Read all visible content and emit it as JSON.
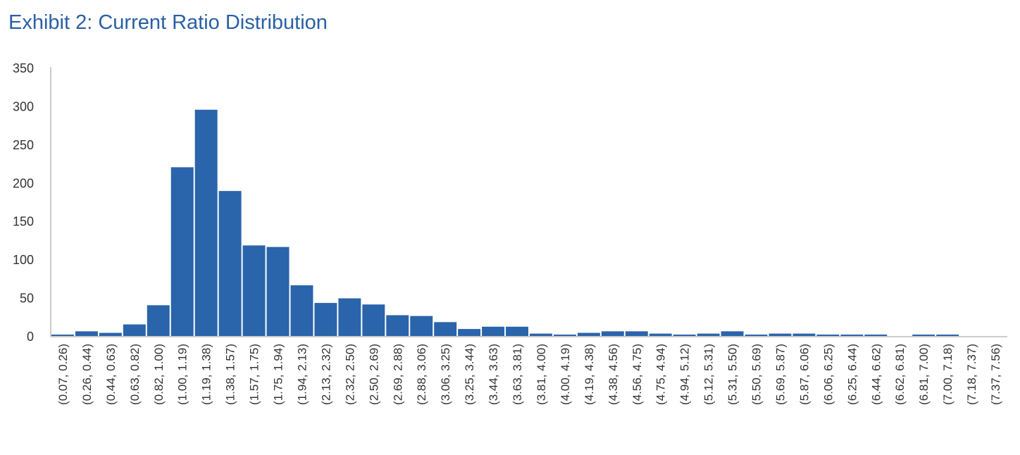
{
  "colors": {
    "bar": "#2a64aa",
    "axis": "#cccccc",
    "title": "#2a5fa5",
    "text": "#333333"
  },
  "chart_data": {
    "type": "bar",
    "title": "Exhibit 2: Current Ratio Distribution",
    "xlabel": "",
    "ylabel": "",
    "ylim": [
      0,
      350
    ],
    "yticks": [
      0,
      50,
      100,
      150,
      200,
      250,
      300,
      350
    ],
    "grid": false,
    "legend": "none",
    "categories": [
      "(0.07, 0.26)",
      "(0.26, 0.44)",
      "(0.44, 0.63)",
      "(0.63, 0.82)",
      "(0.82, 1.00)",
      "(1.00, 1.19)",
      "(1.19, 1.38)",
      "(1.38, 1.57)",
      "(1.57, 1.75)",
      "(1.75, 1.94)",
      "(1.94, 2.13)",
      "(2.13, 2.32)",
      "(2.32, 2.50)",
      "(2.50, 2.69)",
      "(2.69, 2.88)",
      "(2.88, 3.06)",
      "(3.06, 3.25)",
      "(3.25, 3.44)",
      "(3.44, 3.63)",
      "(3.63, 3.81)",
      "(3.81, 4.00)",
      "(4.00, 4.19)",
      "(4.19, 4.38)",
      "(4.38, 4.56)",
      "(4.56, 4.75)",
      "(4.75, 4.94)",
      "(4.94, 5.12)",
      "(5.12, 5.31)",
      "(5.31, 5.50)",
      "(5.50, 5.69)",
      "(5.69, 5.87)",
      "(5.87, 6.06)",
      "(6.06, 6.25)",
      "(6.25, 6.44)",
      "(6.44, 6.62)",
      "(6.62, 6.81)",
      "(6.81, 7.00)",
      "(7.00, 7.18)",
      "(7.18, 7.37)",
      "(7.37, 7.56)"
    ],
    "values": [
      1,
      7,
      5,
      16,
      41,
      221,
      296,
      190,
      119,
      117,
      67,
      44,
      50,
      42,
      28,
      27,
      19,
      10,
      13,
      13,
      4,
      1,
      5,
      7,
      7,
      4,
      1,
      4,
      7,
      1,
      4,
      4,
      1,
      1,
      1,
      0,
      1,
      1,
      0,
      0
    ]
  }
}
